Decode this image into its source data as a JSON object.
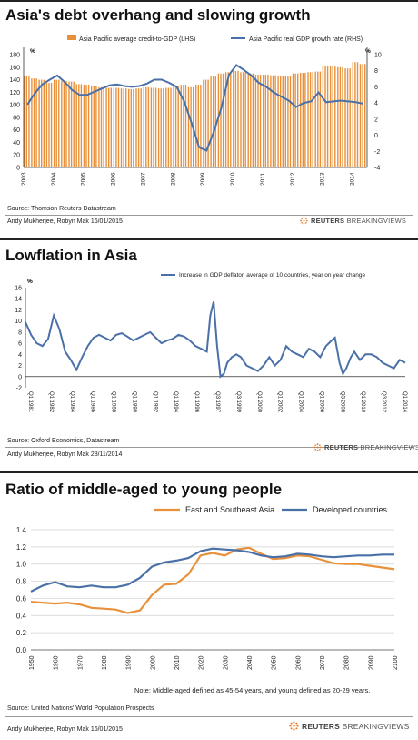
{
  "panels": [
    {
      "title": "Asia's debt overhang and slowing growth",
      "source": "Source: Thomson Reuters Datastream",
      "byline": "Andy Mukherjee, Robyn Mak  16/01/2015",
      "brand": {
        "word1": "REUTERS",
        "word2": "BREAKINGVIEWS"
      }
    },
    {
      "title": "Lowflation in Asia",
      "source": "Source: Oxford Economics, Datastream",
      "byline": "Andy Mukherjee, Robyn Mak  28/11/2014",
      "brand": {
        "word1": "REUTERS",
        "word2": "BREAKINGVIEWS"
      }
    },
    {
      "title": "Ratio of middle-aged to young people",
      "note": "Note: Middle-aged defined as 45-54 years, and young defined as 20-29 years.",
      "source": "Source: United Nations' World Population Prospects",
      "byline": "Andy Mukherjee, Robyn Mak  16/01/2015",
      "brand": {
        "word1": "REUTERS",
        "word2": "BREAKINGVIEWS"
      }
    }
  ],
  "colors": {
    "orange": "#E8913A",
    "blue": "#4A70A8",
    "brand_orange": "#E87722"
  },
  "chart_data": [
    {
      "type": "bar",
      "title": "Asia's debt overhang and slowing growth",
      "x_ticks": [
        "2003",
        "2004",
        "2005",
        "2006",
        "2007",
        "2008",
        "2009",
        "2010",
        "2011",
        "2012",
        "2013",
        "2014"
      ],
      "x_range": [
        2003,
        2014.5
      ],
      "unit_left": "%",
      "unit_right": "%",
      "ylim_left": [
        0,
        180
      ],
      "yticks_left": [
        0,
        20,
        40,
        60,
        80,
        100,
        120,
        140,
        160,
        180
      ],
      "ylim_right": [
        -4,
        10
      ],
      "yticks_right": [
        -4,
        -2,
        0,
        2,
        4,
        6,
        8,
        10
      ],
      "series": [
        {
          "name": "Asia Pacific average credit-to-GDP (LHS)",
          "type": "bar",
          "axis": "left",
          "x": [
            2003,
            2003.25,
            2003.5,
            2003.75,
            2004,
            2004.25,
            2004.5,
            2004.75,
            2005,
            2005.25,
            2005.5,
            2005.75,
            2006,
            2006.25,
            2006.5,
            2006.75,
            2007,
            2007.25,
            2007.5,
            2007.75,
            2008,
            2008.25,
            2008.5,
            2008.75,
            2009,
            2009.25,
            2009.5,
            2009.75,
            2010,
            2010.25,
            2010.5,
            2010.75,
            2011,
            2011.25,
            2011.5,
            2011.75,
            2012,
            2012.25,
            2012.5,
            2012.75,
            2013,
            2013.25,
            2013.5,
            2013.75,
            2014,
            2014.25
          ],
          "values": [
            145,
            142,
            140,
            135,
            140,
            138,
            137,
            133,
            132,
            130,
            128,
            127,
            127,
            126,
            125,
            126,
            128,
            127,
            126,
            127,
            130,
            132,
            128,
            132,
            140,
            145,
            150,
            152,
            154,
            152,
            150,
            148,
            148,
            147,
            146,
            145,
            150,
            151,
            152,
            153,
            162,
            161,
            160,
            158,
            168,
            165
          ]
        },
        {
          "name": "Asia Pacific real GDP growth rate (RHS)",
          "type": "line",
          "axis": "right",
          "x": [
            2003,
            2003.25,
            2003.5,
            2003.75,
            2004,
            2004.25,
            2004.5,
            2004.75,
            2005,
            2005.25,
            2005.5,
            2005.75,
            2006,
            2006.25,
            2006.5,
            2006.75,
            2007,
            2007.25,
            2007.5,
            2007.75,
            2008,
            2008.25,
            2008.5,
            2008.75,
            2009,
            2009.25,
            2009.5,
            2009.75,
            2010,
            2010.25,
            2010.5,
            2010.75,
            2011,
            2011.25,
            2011.5,
            2011.75,
            2012,
            2012.25,
            2012.5,
            2012.75,
            2013,
            2013.25,
            2013.5,
            2013.75,
            2014,
            2014.25
          ],
          "values": [
            3.8,
            5.2,
            6.3,
            6.9,
            7.4,
            6.6,
            5.6,
            5.0,
            5.0,
            5.4,
            5.8,
            6.2,
            6.3,
            6.1,
            6.0,
            6.1,
            6.4,
            6.9,
            6.9,
            6.5,
            6.0,
            4.2,
            1.5,
            -1.5,
            -1.9,
            0.5,
            3.5,
            7.5,
            8.7,
            8.1,
            7.4,
            6.5,
            6.0,
            5.3,
            4.8,
            4.3,
            3.5,
            4.0,
            4.2,
            5.3,
            4.1,
            4.2,
            4.3,
            4.2,
            4.1,
            3.9
          ]
        }
      ]
    },
    {
      "type": "line",
      "title": "Lowflation in Asia",
      "unit": "%",
      "ylim": [
        -2,
        16
      ],
      "yticks": [
        -2,
        0,
        2,
        4,
        6,
        8,
        10,
        12,
        14,
        16
      ],
      "x_ticks": [
        "Q1 1981",
        "Q1 1982",
        "Q1 1984",
        "Q1 1986",
        "Q1 1988",
        "Q1 1990",
        "Q1 1992",
        "Q1 1994",
        "Q1 1996",
        "Q3 1997",
        "Q3 1999",
        "Q1 2000",
        "Q1 2002",
        "Q1 2004",
        "Q1 2006",
        "Q3 2008",
        "Q1 2010",
        "Q3 2012",
        "Q1 2014"
      ],
      "x_range": [
        1981,
        2014.5
      ],
      "series": [
        {
          "name": "Increase in GDP deflator, average of 10 countries, year on year change",
          "x": [
            1981,
            1981.5,
            1982,
            1982.5,
            1983,
            1983.5,
            1984,
            1984.5,
            1985,
            1985.5,
            1986,
            1986.5,
            1987,
            1987.5,
            1988,
            1988.5,
            1989,
            1989.5,
            1990,
            1990.5,
            1991,
            1991.5,
            1992,
            1992.5,
            1993,
            1993.5,
            1994,
            1994.5,
            1995,
            1995.5,
            1996,
            1996.5,
            1997,
            1997.3,
            1997.6,
            1997.9,
            1998.2,
            1998.5,
            1998.8,
            1999.2,
            1999.6,
            2000,
            2000.5,
            2001,
            2001.5,
            2002,
            2002.5,
            2003,
            2003.5,
            2004,
            2004.5,
            2005,
            2005.5,
            2006,
            2006.5,
            2007,
            2007.5,
            2008,
            2008.3,
            2008.7,
            2009,
            2009.3,
            2009.7,
            2010,
            2010.5,
            2011,
            2011.5,
            2012,
            2012.5,
            2013,
            2013.5,
            2014,
            2014.5
          ],
          "values": [
            9.8,
            7.5,
            6.0,
            5.5,
            6.8,
            11.0,
            8.5,
            4.5,
            3.0,
            1.2,
            3.5,
            5.5,
            7.0,
            7.5,
            7.0,
            6.5,
            7.5,
            7.8,
            7.2,
            6.5,
            7.0,
            7.5,
            8.0,
            7.0,
            6.0,
            6.5,
            6.8,
            7.5,
            7.2,
            6.5,
            5.5,
            5.0,
            4.5,
            11.0,
            13.5,
            5.5,
            0.0,
            0.5,
            2.5,
            3.5,
            4.0,
            3.5,
            2.0,
            1.5,
            1.0,
            2.0,
            3.5,
            2.0,
            3.0,
            5.5,
            4.5,
            4.0,
            3.5,
            5.0,
            4.5,
            3.5,
            5.5,
            6.5,
            7.0,
            2.5,
            0.5,
            1.5,
            3.5,
            4.5,
            3.0,
            4.0,
            4.0,
            3.5,
            2.5,
            2.0,
            1.5,
            3.0,
            2.5
          ]
        }
      ]
    },
    {
      "type": "line",
      "title": "Ratio of middle-aged to young people",
      "ylim": [
        0.0,
        1.4
      ],
      "yticks": [
        "0.0",
        "0.2",
        "0.4",
        "0.6",
        "0.8",
        "1.0",
        "1.2",
        "1.4"
      ],
      "x_ticks": [
        "1950",
        "1960",
        "1970",
        "1980",
        "1990",
        "2000",
        "2010",
        "2020",
        "2030",
        "2040",
        "2050",
        "2060",
        "2070",
        "2080",
        "2090",
        "2100"
      ],
      "x_range": [
        1950,
        2100
      ],
      "series": [
        {
          "name": "East and Southeast Asia",
          "x": [
            1950,
            1955,
            1960,
            1965,
            1970,
            1975,
            1980,
            1985,
            1990,
            1995,
            2000,
            2005,
            2010,
            2015,
            2020,
            2025,
            2030,
            2035,
            2040,
            2045,
            2050,
            2055,
            2060,
            2065,
            2070,
            2075,
            2080,
            2085,
            2090,
            2095,
            2100
          ],
          "values": [
            0.56,
            0.55,
            0.54,
            0.55,
            0.53,
            0.49,
            0.48,
            0.47,
            0.43,
            0.46,
            0.64,
            0.76,
            0.77,
            0.88,
            1.1,
            1.13,
            1.1,
            1.17,
            1.19,
            1.12,
            1.06,
            1.07,
            1.1,
            1.09,
            1.05,
            1.01,
            1.0,
            1.0,
            0.98,
            0.96,
            0.94
          ]
        },
        {
          "name": "Developed countries",
          "x": [
            1950,
            1955,
            1960,
            1965,
            1970,
            1975,
            1980,
            1985,
            1990,
            1995,
            2000,
            2005,
            2010,
            2015,
            2020,
            2025,
            2030,
            2035,
            2040,
            2045,
            2050,
            2055,
            2060,
            2065,
            2070,
            2075,
            2080,
            2085,
            2090,
            2095,
            2100
          ],
          "values": [
            0.68,
            0.75,
            0.79,
            0.74,
            0.73,
            0.75,
            0.73,
            0.73,
            0.76,
            0.84,
            0.97,
            1.02,
            1.04,
            1.07,
            1.15,
            1.18,
            1.17,
            1.16,
            1.14,
            1.1,
            1.08,
            1.09,
            1.12,
            1.11,
            1.09,
            1.08,
            1.09,
            1.1,
            1.1,
            1.11,
            1.11
          ]
        }
      ]
    }
  ]
}
